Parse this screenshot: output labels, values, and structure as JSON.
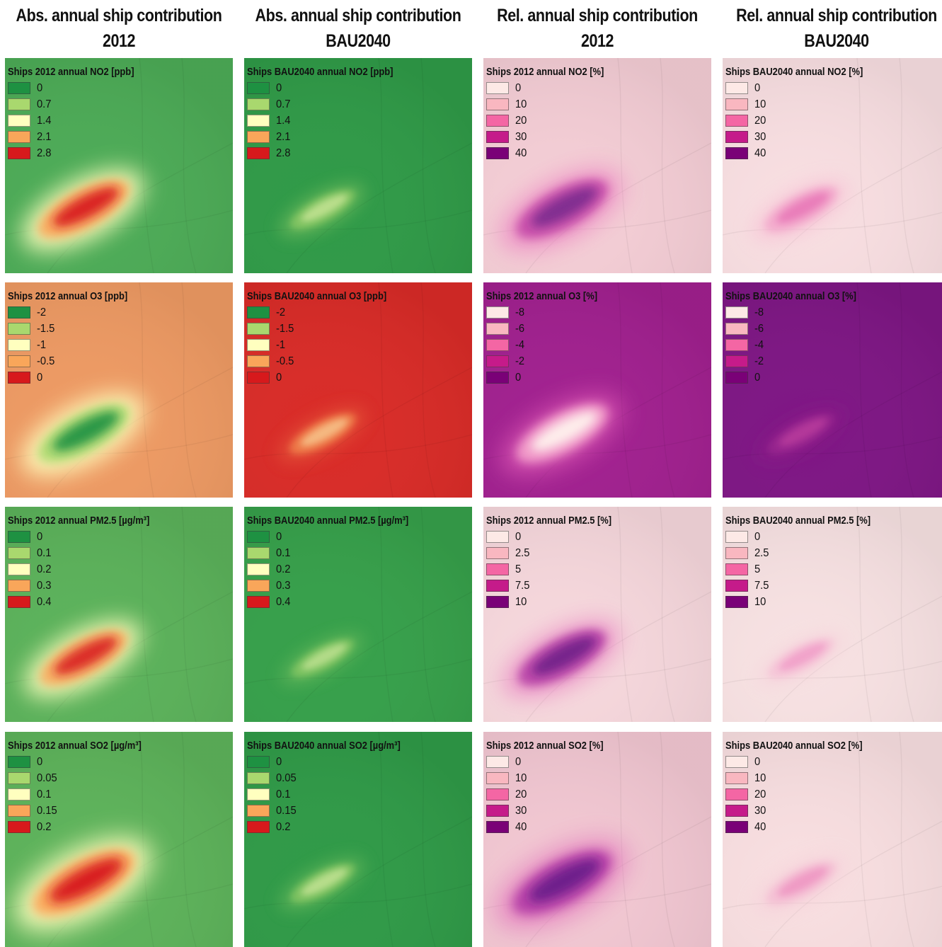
{
  "column_titles": [
    {
      "line1": "Abs. annual ship contribution",
      "line2": "2012"
    },
    {
      "line1": "Abs. annual ship contribution",
      "line2": "BAU2040"
    },
    {
      "line1": "Rel. annual ship contribution",
      "line2": "2012"
    },
    {
      "line1": "Rel. annual ship contribution",
      "line2": "BAU2040"
    }
  ],
  "colors": {
    "abs_ramp": [
      "#1e9142",
      "#a9d86e",
      "#ffffbf",
      "#f9a65a",
      "#d7191c"
    ],
    "rel_ramp": [
      "#fde9e6",
      "#f9b7c0",
      "#f466a4",
      "#c51b8a",
      "#7a0177"
    ]
  },
  "panels": [
    [
      {
        "title": "Ships 2012 annual NO2 [ppb]",
        "ramp": "abs",
        "values": [
          "0",
          "0.7",
          "1.4",
          "2.1",
          "2.8"
        ],
        "background": "#4cab56",
        "plume": {
          "level": 1.0,
          "core": "#d7191c",
          "mid": "#f9a65a",
          "halo": "#ffffbf"
        }
      },
      {
        "title": "Ships BAU2040 annual NO2 [ppb]",
        "ramp": "abs",
        "values": [
          "0",
          "0.7",
          "1.4",
          "2.1",
          "2.8"
        ],
        "background": "#2f9a47",
        "plume": {
          "level": 0.25,
          "core": "#ffffbf",
          "mid": "#a9d86e",
          "halo": "#7cc162"
        }
      },
      {
        "title": "Ships 2012 annual NO2 [%]",
        "ramp": "rel",
        "values": [
          "0",
          "10",
          "20",
          "30",
          "40"
        ],
        "background": "#f4cdd5",
        "plume": {
          "level": 1.0,
          "core": "#7a2a8e",
          "mid": "#c44aa8",
          "halo": "#ec8fc4"
        }
      },
      {
        "title": "Ships BAU2040 annual NO2 [%]",
        "ramp": "rel",
        "values": [
          "0",
          "10",
          "20",
          "30",
          "40"
        ],
        "background": "#f8dee1",
        "plume": {
          "level": 0.5,
          "core": "#e35fad",
          "mid": "#f19ac6",
          "halo": "#f7c3d6"
        }
      }
    ],
    [
      {
        "title": "Ships 2012 annual O3 [ppb]",
        "ramp": "abs",
        "values": [
          "-2",
          "-1.5",
          "-1",
          "-0.5",
          "0"
        ],
        "background": "#ee9a63",
        "plume": {
          "level": 1.0,
          "core": "#1e9142",
          "mid": "#a9d86e",
          "halo": "#ffffbf"
        }
      },
      {
        "title": "Ships BAU2040 annual O3 [ppb]",
        "ramp": "abs",
        "values": [
          "-2",
          "-1.5",
          "-1",
          "-0.5",
          "0"
        ],
        "background": "#d92b27",
        "plume": {
          "level": 0.3,
          "core": "#ffffbf",
          "mid": "#f9a65a",
          "halo": "#e65a3c"
        }
      },
      {
        "title": "Ships 2012 annual O3 [%]",
        "ramp": "rel",
        "values": [
          "-8",
          "-6",
          "-4",
          "-2",
          "0"
        ],
        "background": "#a1208f",
        "plume": {
          "level": 1.0,
          "core": "#fff6ef",
          "mid": "#f5a3cc",
          "halo": "#d24fae"
        }
      },
      {
        "title": "Ships BAU2040 annual O3 [%]",
        "ramp": "rel",
        "values": [
          "-8",
          "-6",
          "-4",
          "-2",
          "0"
        ],
        "background": "#7e1684",
        "plume": {
          "level": 0.3,
          "core": "#d34fa8",
          "mid": "#a62f95",
          "halo": "#8c1f88"
        }
      }
    ],
    [
      {
        "title": "Ships 2012 annual PM2.5 [µg/m³]",
        "ramp": "abs",
        "values": [
          "0",
          "0.1",
          "0.2",
          "0.3",
          "0.4"
        ],
        "background": "#5bb25a",
        "plume": {
          "level": 0.9,
          "core": "#d7191c",
          "mid": "#f9a65a",
          "halo": "#ffffbf"
        }
      },
      {
        "title": "Ships BAU2040 annual PM2.5 [µg/m³]",
        "ramp": "abs",
        "values": [
          "0",
          "0.1",
          "0.2",
          "0.3",
          "0.4"
        ],
        "background": "#36a04a",
        "plume": {
          "level": 0.2,
          "core": "#ffffbf",
          "mid": "#a9d86e",
          "halo": "#6dbb5f"
        }
      },
      {
        "title": "Ships 2012 annual PM2.5 [%]",
        "ramp": "rel",
        "values": [
          "0",
          "2.5",
          "5",
          "7.5",
          "10"
        ],
        "background": "#f6d7dc",
        "plume": {
          "level": 0.9,
          "core": "#6a1b86",
          "mid": "#b23ba4",
          "halo": "#ea92c6"
        }
      },
      {
        "title": "Ships BAU2040 annual PM2.5 [%]",
        "ramp": "rel",
        "values": [
          "0",
          "2.5",
          "5",
          "7.5",
          "10"
        ],
        "background": "#f7e1e2",
        "plume": {
          "level": 0.3,
          "core": "#ee7fbd",
          "mid": "#f4b6d2",
          "halo": "#f6d3dc"
        }
      }
    ],
    [
      {
        "title": "Ships 2012 annual SO2 [µg/m³]",
        "ramp": "abs",
        "values": [
          "0",
          "0.05",
          "0.1",
          "0.15",
          "0.2"
        ],
        "background": "#5db35a",
        "plume": {
          "level": 1.3,
          "core": "#d7191c",
          "mid": "#f9a65a",
          "halo": "#ffffbf"
        }
      },
      {
        "title": "Ships BAU2040 annual SO2 [µg/m³]",
        "ramp": "abs",
        "values": [
          "0",
          "0.05",
          "0.1",
          "0.15",
          "0.2"
        ],
        "background": "#2f9a47",
        "plume": {
          "level": 0.25,
          "core": "#ffffbf",
          "mid": "#a9d86e",
          "halo": "#6dbb5f"
        }
      },
      {
        "title": "Ships 2012 annual SO2 [%]",
        "ramp": "rel",
        "values": [
          "0",
          "10",
          "20",
          "30",
          "40"
        ],
        "background": "#f2c7d2",
        "plume": {
          "level": 1.2,
          "core": "#6b1c8a",
          "mid": "#b53fa7",
          "halo": "#e486c0"
        }
      },
      {
        "title": "Ships BAU2040 annual SO2 [%]",
        "ramp": "rel",
        "values": [
          "0",
          "10",
          "20",
          "30",
          "40"
        ],
        "background": "#f8dee0",
        "plume": {
          "level": 0.4,
          "core": "#eb7cb8",
          "mid": "#f3b2cf",
          "halo": "#f6d0da"
        }
      }
    ]
  ]
}
